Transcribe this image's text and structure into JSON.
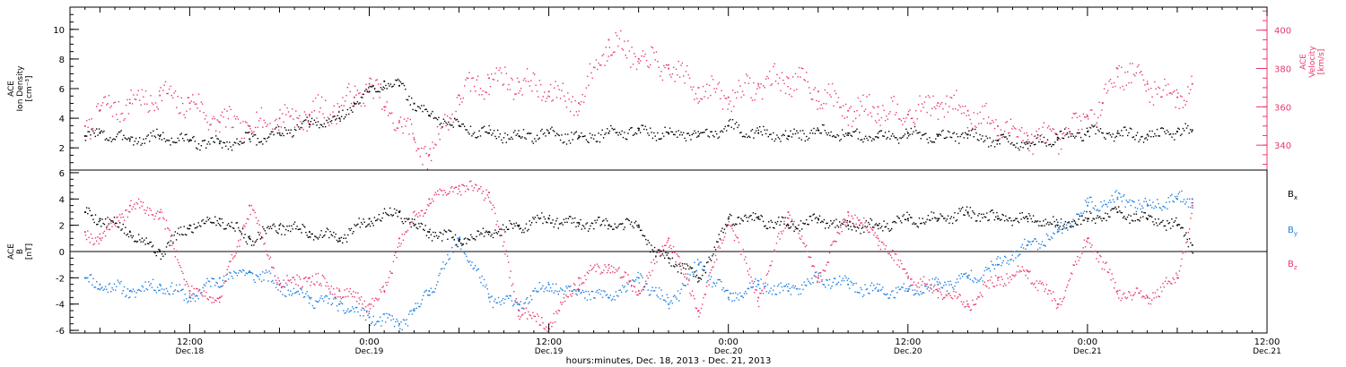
{
  "colors": {
    "black": "#000000",
    "pink": "#e8386a",
    "blue": "#1f7fe0"
  },
  "xlabel": "hours:minutes, Dec. 18, 2013 - Dec. 21, 2013",
  "x_ticks": [
    {
      "time": "12:00",
      "date": "Dec.18",
      "hours": 12
    },
    {
      "time": "0:00",
      "date": "Dec.19",
      "hours": 24
    },
    {
      "time": "12:00",
      "date": "Dec.19",
      "hours": 36
    },
    {
      "time": "0:00",
      "date": "Dec.20",
      "hours": 48
    },
    {
      "time": "12:00",
      "date": "Dec.20",
      "hours": 60
    },
    {
      "time": "0:00",
      "date": "Dec.21",
      "hours": 72
    },
    {
      "time": "12:00",
      "date": "Dec.21",
      "hours": 84
    }
  ],
  "chart_data": [
    {
      "type": "scatter",
      "panel": "top",
      "xlim": [
        4,
        84
      ],
      "left_axis": {
        "label_lines": [
          "ACE",
          "Ion Density",
          "[cm⁻³]"
        ],
        "ylim": [
          0.5,
          11.5
        ],
        "ticks": [
          "2",
          "4",
          "6",
          "8",
          "10"
        ]
      },
      "right_axis": {
        "label_lines": [
          "ACE",
          "Velocity",
          "[km/s]"
        ],
        "ylim": [
          327,
          412
        ],
        "ticks": [
          "340",
          "360",
          "380",
          "400"
        ]
      },
      "series": [
        {
          "axis": "left",
          "color": "black",
          "x": [
            5,
            6,
            8,
            10,
            12,
            14,
            16,
            18,
            20,
            22,
            23,
            24,
            25,
            26,
            27,
            28,
            30,
            32,
            34,
            36,
            38,
            40,
            42,
            44,
            46,
            48,
            50,
            52,
            54,
            56,
            58,
            60,
            62,
            64,
            66,
            68,
            70,
            72,
            74,
            76,
            78,
            79
          ],
          "y": [
            2.8,
            3.0,
            2.6,
            2.8,
            2.5,
            2.3,
            2.6,
            3.0,
            3.6,
            4.0,
            5.0,
            5.8,
            6.5,
            6.2,
            5.0,
            4.2,
            3.5,
            3.0,
            2.8,
            3.0,
            2.7,
            3.0,
            3.2,
            3.0,
            2.8,
            3.5,
            3.0,
            2.8,
            3.2,
            3.0,
            2.7,
            3.0,
            2.8,
            2.9,
            2.5,
            2.3,
            2.7,
            3.1,
            3.0,
            2.9,
            3.1,
            3.2
          ]
        },
        {
          "axis": "right",
          "color": "pink",
          "x": [
            5,
            6,
            8,
            10,
            12,
            14,
            16,
            18,
            20,
            22,
            23,
            24,
            25,
            26,
            27,
            28,
            30,
            32,
            34,
            36,
            38,
            40,
            42,
            44,
            46,
            48,
            50,
            52,
            54,
            56,
            58,
            60,
            62,
            64,
            66,
            68,
            70,
            72,
            73,
            74,
            76,
            78,
            79
          ],
          "y": [
            350,
            358,
            362,
            366,
            362,
            352,
            350,
            354,
            356,
            360,
            365,
            372,
            360,
            352,
            343,
            335,
            366,
            375,
            373,
            368,
            362,
            395,
            385,
            380,
            370,
            365,
            372,
            375,
            368,
            358,
            360,
            356,
            362,
            358,
            350,
            345,
            343,
            355,
            362,
            380,
            372,
            365,
            372
          ]
        }
      ]
    },
    {
      "type": "scatter",
      "panel": "bottom",
      "xlim": [
        4,
        84
      ],
      "left_axis": {
        "label_lines": [
          "ACE",
          "B",
          "[nT]"
        ],
        "ylim": [
          -6.2,
          6.2
        ],
        "ticks": [
          "-6",
          "-4",
          "-2",
          "0",
          "2",
          "4",
          "6"
        ]
      },
      "series": [
        {
          "name": "Bx",
          "color": "black",
          "x": [
            5,
            6,
            8,
            10,
            12,
            14,
            16,
            18,
            20,
            22,
            24,
            26,
            27,
            28,
            30,
            32,
            34,
            36,
            38,
            40,
            42,
            43,
            44,
            46,
            48,
            50,
            52,
            54,
            56,
            58,
            60,
            62,
            64,
            66,
            68,
            70,
            72,
            74,
            76,
            78,
            79
          ],
          "y": [
            3.0,
            2.5,
            1.5,
            0.0,
            2.0,
            2.5,
            1.0,
            2.0,
            1.5,
            1.0,
            2.5,
            3.0,
            2.0,
            1.5,
            0.8,
            1.5,
            2.0,
            2.5,
            2.2,
            2.0,
            2.0,
            0.0,
            -0.5,
            -2.0,
            2.5,
            2.5,
            2.0,
            2.5,
            2.0,
            2.0,
            2.5,
            2.5,
            3.0,
            2.5,
            2.5,
            2.0,
            2.5,
            3.0,
            2.5,
            2.0,
            0.5
          ]
        },
        {
          "name": "By",
          "color": "blue",
          "x": [
            5,
            6,
            8,
            10,
            12,
            14,
            16,
            18,
            20,
            22,
            24,
            26,
            27,
            28,
            30,
            32,
            34,
            36,
            38,
            40,
            42,
            44,
            46,
            48,
            50,
            52,
            54,
            56,
            58,
            60,
            62,
            64,
            66,
            68,
            70,
            72,
            74,
            76,
            78,
            79
          ],
          "y": [
            -2.0,
            -2.5,
            -3.0,
            -2.5,
            -3.5,
            -2.0,
            -1.5,
            -2.5,
            -3.5,
            -4.0,
            -5.0,
            -5.5,
            -4.5,
            -3.0,
            1.0,
            -3.5,
            -4.0,
            -2.5,
            -3.0,
            -3.5,
            -2.0,
            -4.0,
            -1.0,
            -3.5,
            -2.5,
            -3.0,
            -2.0,
            -2.5,
            -3.0,
            -3.0,
            -2.5,
            -2.0,
            -1.0,
            0.5,
            1.5,
            3.5,
            4.0,
            3.5,
            4.0,
            4.0
          ]
        },
        {
          "name": "Bz",
          "color": "pink",
          "x": [
            5,
            6,
            8,
            10,
            12,
            14,
            16,
            18,
            20,
            22,
            24,
            25,
            26,
            28,
            30,
            32,
            34,
            36,
            38,
            40,
            42,
            44,
            46,
            48,
            50,
            52,
            54,
            56,
            58,
            60,
            62,
            64,
            66,
            68,
            70,
            72,
            74,
            76,
            78,
            79
          ],
          "y": [
            1.5,
            1.0,
            3.5,
            3.0,
            -3.0,
            -3.5,
            3.5,
            -2.5,
            -2.0,
            -3.0,
            -4.0,
            -3.0,
            1.0,
            4.0,
            5.0,
            4.5,
            -4.5,
            -5.5,
            -2.0,
            -1.0,
            -3.0,
            1.0,
            -4.5,
            2.5,
            -3.5,
            3.0,
            -2.0,
            3.0,
            1.0,
            -2.0,
            -3.0,
            -4.0,
            -2.0,
            -1.5,
            -4.0,
            1.0,
            -3.0,
            -3.5,
            -2.0,
            3.5
          ]
        }
      ]
    }
  ],
  "legend": [
    {
      "base": "B",
      "sub": "x",
      "color": "black"
    },
    {
      "base": "B",
      "sub": "y",
      "color": "blue"
    },
    {
      "base": "B",
      "sub": "z",
      "color": "pink"
    }
  ]
}
